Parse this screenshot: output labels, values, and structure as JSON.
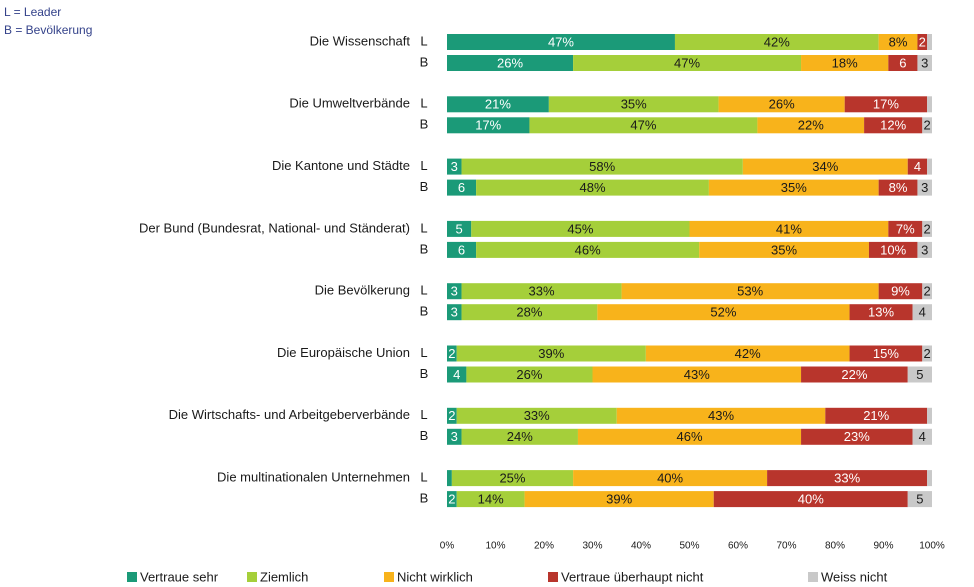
{
  "chart_data": {
    "type": "stacked-bar-horizontal",
    "annotations": [
      "L = Leader",
      "B = Bevölkerung"
    ],
    "groups": [
      "Die Wissenschaft",
      "Die Umweltverbände",
      "Die Kantone und Städte",
      "Der Bund (Bundesrat, National- und Ständerat)",
      "Die Bevölkerung",
      "Die Europäische Union",
      "Die Wirtschafts- und Arbeitgeberverbände",
      "Die multinationalen Unternehmen"
    ],
    "categories": [
      "L",
      "B",
      "L",
      "B",
      "L",
      "B",
      "L",
      "B",
      "L",
      "B",
      "L",
      "B",
      "L",
      "B",
      "L",
      "B"
    ],
    "series": [
      {
        "name": "Vertraue sehr",
        "color": "#1b9a78",
        "label_color": "#ffffff",
        "values": [
          47,
          26,
          21,
          17,
          3,
          6,
          5,
          6,
          3,
          3,
          2,
          4,
          2,
          3,
          1,
          2
        ],
        "value_labels": [
          "47%",
          "26%",
          "21%",
          "17%",
          "3",
          "6",
          "5",
          "6",
          "3",
          "3",
          "2",
          "4",
          "2",
          "3",
          null,
          "2"
        ]
      },
      {
        "name": "Ziemlich",
        "color": "#a5cf3a",
        "label_color": "#1a1a1a",
        "values": [
          42,
          47,
          35,
          47,
          58,
          48,
          45,
          46,
          33,
          28,
          39,
          26,
          33,
          24,
          25,
          14
        ],
        "value_labels": [
          "42%",
          "47%",
          "35%",
          "47%",
          "58%",
          "48%",
          "45%",
          "46%",
          "33%",
          "28%",
          "39%",
          "26%",
          "33%",
          "24%",
          "25%",
          "14%"
        ]
      },
      {
        "name": "Nicht wirklich",
        "color": "#f8b31b",
        "label_color": "#1a1a1a",
        "values": [
          8,
          18,
          26,
          22,
          34,
          35,
          41,
          35,
          53,
          52,
          42,
          43,
          43,
          46,
          40,
          39
        ],
        "value_labels": [
          "8%",
          "18%",
          "26%",
          "22%",
          "34%",
          "35%",
          "41%",
          "35%",
          "53%",
          "52%",
          "42%",
          "43%",
          "43%",
          "46%",
          "40%",
          "39%"
        ]
      },
      {
        "name": "Vertraue überhaupt nicht",
        "color": "#b8352c",
        "label_color": "#ffffff",
        "values": [
          2,
          6,
          17,
          12,
          4,
          8,
          7,
          10,
          9,
          13,
          15,
          22,
          21,
          23,
          33,
          40
        ],
        "value_labels": [
          "2",
          "6",
          "17%",
          "12%",
          "4",
          "8%",
          "7%",
          "10%",
          "9%",
          "13%",
          "15%",
          "22%",
          "21%",
          "23%",
          "33%",
          "40%"
        ]
      },
      {
        "name": "Weiss nicht",
        "color": "#c9c9c9",
        "label_color": "#1a1a1a",
        "values": [
          1,
          3,
          1,
          2,
          1,
          3,
          2,
          3,
          2,
          4,
          2,
          5,
          1,
          4,
          1,
          5
        ],
        "value_labels": [
          null,
          "3",
          null,
          "2",
          null,
          "3",
          "2",
          "3",
          "2",
          "4",
          "2",
          "5",
          null,
          "4",
          null,
          "5"
        ]
      }
    ],
    "xlim": [
      0,
      100
    ],
    "xticks": [
      {
        "value": 0,
        "label": "0%"
      },
      {
        "value": 10,
        "label": "10%"
      },
      {
        "value": 20,
        "label": "20%"
      },
      {
        "value": 30,
        "label": "30%"
      },
      {
        "value": 40,
        "label": "40%"
      },
      {
        "value": 50,
        "label": "50%"
      },
      {
        "value": 60,
        "label": "60%"
      },
      {
        "value": 70,
        "label": "70%"
      },
      {
        "value": 80,
        "label": "80%"
      },
      {
        "value": 90,
        "label": "90%"
      },
      {
        "value": 100,
        "label": "100%"
      }
    ],
    "legend": "bottom"
  }
}
